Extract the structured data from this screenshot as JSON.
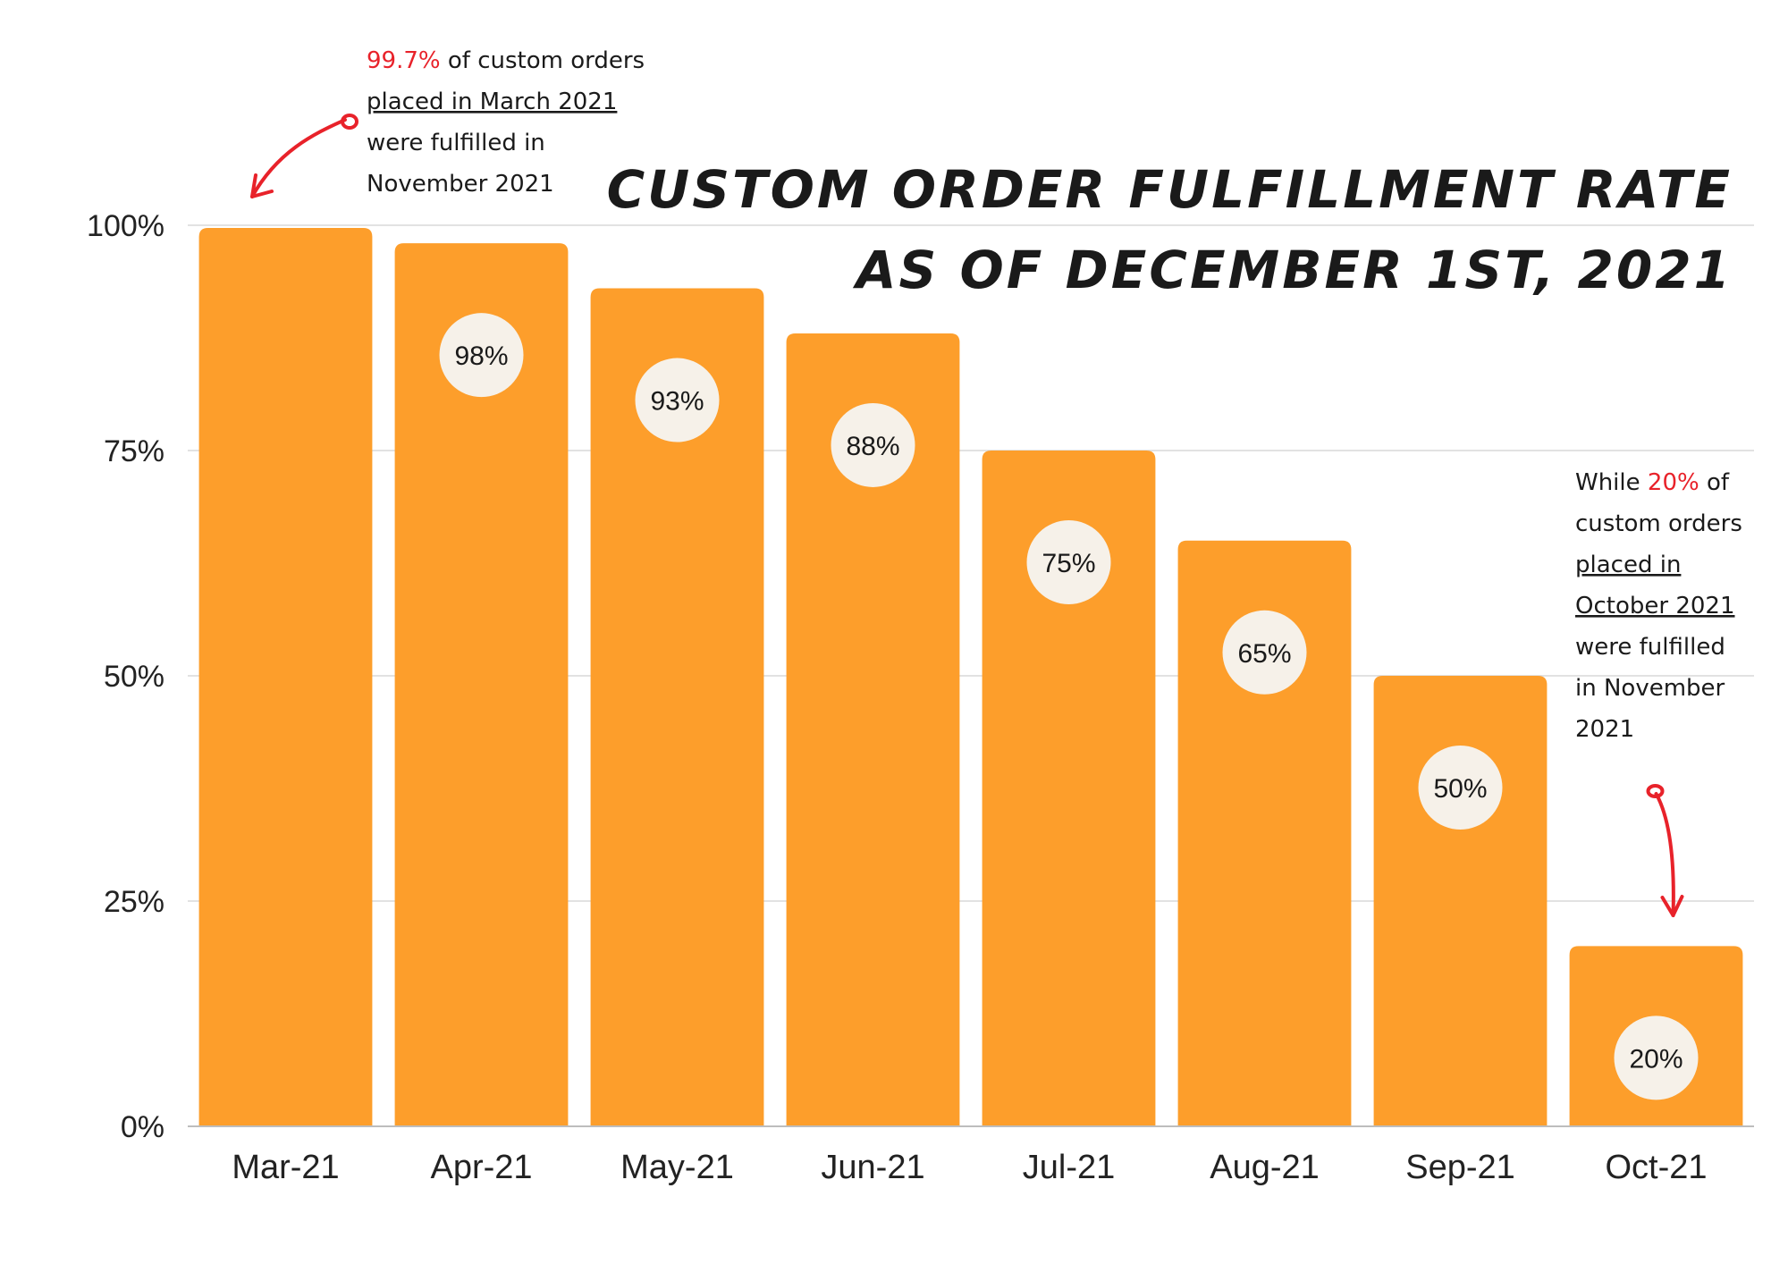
{
  "chart_data": {
    "type": "bar",
    "title_lines": [
      "CUSTOM ORDER FULFILLMENT RATE",
      "AS OF DECEMBER 1ST, 2021"
    ],
    "categories": [
      "Mar-21",
      "Apr-21",
      "May-21",
      "Jun-21",
      "Jul-21",
      "Aug-21",
      "Sep-21",
      "Oct-21"
    ],
    "values": [
      99.7,
      98,
      93,
      88,
      75,
      65,
      50,
      20
    ],
    "value_labels": [
      "",
      "98%",
      "93%",
      "88%",
      "75%",
      "65%",
      "50%",
      "20%"
    ],
    "ylim": [
      0,
      100
    ],
    "yticks": [
      0,
      25,
      50,
      75,
      100
    ],
    "ytick_labels": [
      "0%",
      "25%",
      "50%",
      "75%",
      "100%"
    ],
    "grid": true,
    "legend": "none",
    "annotations": [
      {
        "target": "Mar-21",
        "lines": [
          [
            {
              "text": "99.7%",
              "highlight": true
            },
            {
              "text": " of custom orders",
              "highlight": false
            }
          ],
          [
            {
              "text": "placed in March 2021",
              "highlight": false,
              "underline": true
            }
          ],
          [
            {
              "text": "were fulfilled in",
              "highlight": false
            }
          ],
          [
            {
              "text": "November 2021",
              "highlight": false
            }
          ]
        ]
      },
      {
        "target": "Oct-21",
        "lines": [
          [
            {
              "text": "While ",
              "highlight": false
            },
            {
              "text": "20%",
              "highlight": true
            },
            {
              "text": " of",
              "highlight": false
            }
          ],
          [
            {
              "text": "custom orders",
              "highlight": false
            }
          ],
          [
            {
              "text": "placed in",
              "highlight": false,
              "underline": true
            }
          ],
          [
            {
              "text": "October 2021",
              "highlight": false,
              "underline": true
            }
          ],
          [
            {
              "text": "were fulfilled",
              "highlight": false
            }
          ],
          [
            {
              "text": "in November",
              "highlight": false
            }
          ],
          [
            {
              "text": "2021",
              "highlight": false
            }
          ]
        ]
      }
    ],
    "colors": {
      "bar": "#fd9e2b",
      "label_bubble": "#f6f1e9",
      "highlight": "#e8222a",
      "grid": "#d9d9d9",
      "axis": "#bdbdbd"
    }
  }
}
